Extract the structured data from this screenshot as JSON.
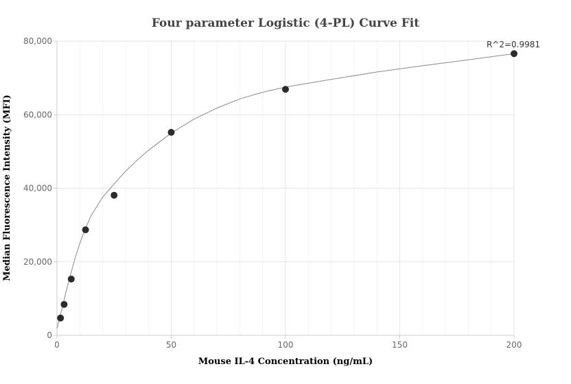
{
  "chart_data": {
    "type": "scatter",
    "title": "Four parameter Logistic (4-PL) Curve Fit",
    "xlabel": "Mouse IL-4 Concentration (ng/mL)",
    "ylabel": "Median Fluorescence Intensity (MFI)",
    "xlim": [
      0,
      200
    ],
    "ylim": [
      0,
      80000
    ],
    "x_ticks": [
      0,
      50,
      100,
      150,
      200
    ],
    "y_ticks": [
      0,
      20000,
      40000,
      60000,
      80000
    ],
    "x_tick_labels": [
      "0",
      "50",
      "100",
      "150",
      "200"
    ],
    "y_tick_labels": [
      "0",
      "20,000",
      "40,000",
      "60,000",
      "80,000"
    ],
    "grid": true,
    "series": [
      {
        "type": "scatter",
        "x": [
          1.5625,
          3.125,
          6.25,
          12.5,
          25,
          50,
          100,
          200
        ],
        "y": [
          4700,
          8400,
          15300,
          28700,
          38100,
          55200,
          66900,
          76600
        ]
      },
      {
        "type": "line",
        "x": [
          0,
          2,
          4,
          6,
          8,
          10,
          12,
          15,
          20,
          25,
          30,
          35,
          40,
          50,
          60,
          70,
          80,
          90,
          100,
          120,
          140,
          160,
          180,
          200
        ],
        "y": [
          1800,
          6800,
          11900,
          16700,
          21100,
          25000,
          28400,
          32600,
          37600,
          41200,
          44600,
          47600,
          50300,
          55000,
          58800,
          61800,
          64300,
          66100,
          67500,
          69600,
          71600,
          73300,
          74900,
          76600
        ]
      }
    ],
    "annotation": "R^2=0.9981",
    "colors": {
      "marker": "#2b2b2b",
      "curve": "#888888",
      "grid": "#e6e6e6",
      "axis": "#cccccc"
    }
  }
}
